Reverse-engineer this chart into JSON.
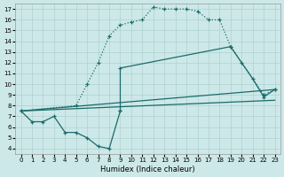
{
  "xlabel": "Humidex (Indice chaleur)",
  "bg_color": "#cde8e8",
  "grid_color": "#b0d0d0",
  "line_color": "#1a6b6b",
  "xlim": [
    -0.5,
    23.5
  ],
  "ylim": [
    3.5,
    17.5
  ],
  "xticks": [
    0,
    1,
    2,
    3,
    4,
    5,
    6,
    7,
    8,
    9,
    10,
    11,
    12,
    13,
    14,
    15,
    16,
    17,
    18,
    19,
    20,
    21,
    22,
    23
  ],
  "yticks": [
    4,
    5,
    6,
    7,
    8,
    9,
    10,
    11,
    12,
    13,
    14,
    15,
    16,
    17
  ],
  "dotted_line": {
    "x": [
      0,
      5,
      6,
      7,
      8,
      9,
      10,
      11,
      12,
      13,
      14,
      15,
      16,
      17,
      18,
      19,
      22,
      23
    ],
    "y": [
      7.5,
      8.0,
      10.0,
      12.0,
      14.5,
      15.5,
      15.8,
      16.0,
      17.2,
      17.0,
      17.0,
      17.0,
      16.8,
      16.0,
      16.0,
      13.5,
      9.0,
      9.5
    ]
  },
  "zigzag_line": {
    "x": [
      0,
      1,
      2,
      3,
      4,
      5,
      6,
      7,
      8,
      9
    ],
    "y": [
      7.5,
      6.5,
      6.5,
      7.0,
      5.5,
      5.5,
      5.0,
      4.2,
      4.0,
      7.5
    ]
  },
  "spike_line": {
    "x": [
      9,
      9,
      19,
      20,
      21,
      22,
      23
    ],
    "y": [
      7.5,
      11.5,
      13.5,
      12.0,
      10.5,
      8.8,
      9.5
    ]
  },
  "linear_line1": {
    "x": [
      0,
      23
    ],
    "y": [
      7.5,
      9.5
    ]
  },
  "linear_line2": {
    "x": [
      0,
      23
    ],
    "y": [
      7.5,
      8.5
    ]
  }
}
